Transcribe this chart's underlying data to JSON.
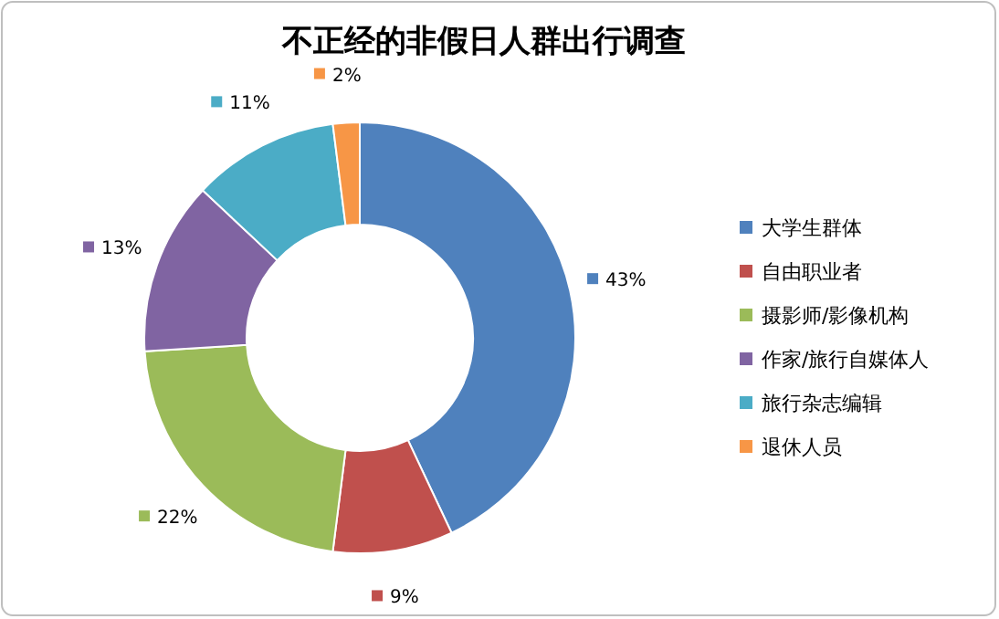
{
  "chart_data": {
    "type": "donut",
    "title": "不正经的非假日人群出行调查",
    "categories": [
      "大学生群体",
      "自由职业者",
      "摄影师/影像机构",
      "作家/旅行自媒体人",
      "旅行杂志编辑",
      "退休人员"
    ],
    "values": [
      43,
      9,
      22,
      13,
      11,
      2
    ],
    "colors": [
      "#4f81bd",
      "#c0504d",
      "#9bbb59",
      "#8064a2",
      "#4bacc6",
      "#f79646"
    ],
    "value_labels": [
      "43%",
      "9%",
      "22%",
      "13%",
      "11%",
      "2%"
    ],
    "legend": "right"
  }
}
